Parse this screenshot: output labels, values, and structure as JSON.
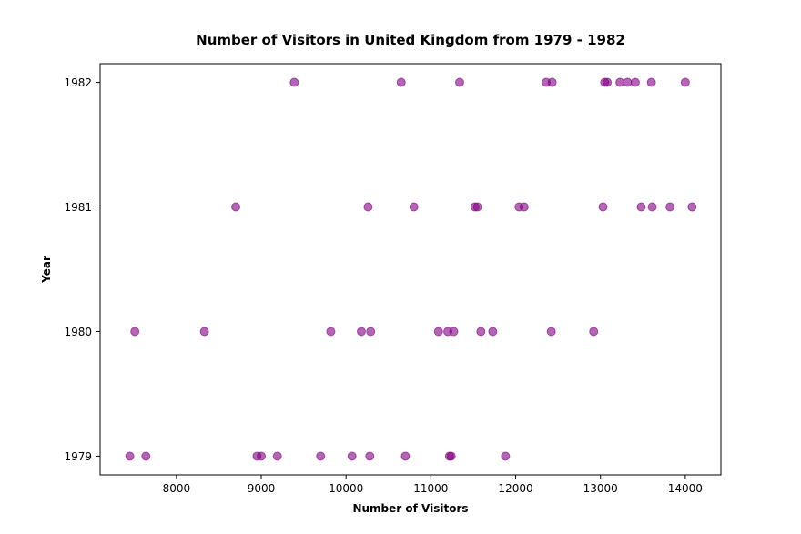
{
  "chart_data": {
    "type": "scatter",
    "title": "Number of Visitors in United Kingdom from 1979 - 1982",
    "xlabel": "Number of Visitors",
    "ylabel": "Year",
    "xlim": [
      7100,
      14420
    ],
    "ylim": [
      1978.85,
      1982.15
    ],
    "x_ticks": [
      8000,
      9000,
      10000,
      11000,
      12000,
      13000,
      14000
    ],
    "y_ticks": [
      1979,
      1980,
      1981,
      1982
    ],
    "grid": false,
    "marker_color": "#800080",
    "marker_opacity": 0.6,
    "points": [
      {
        "x": 7450,
        "y": 1979
      },
      {
        "x": 7640,
        "y": 1979
      },
      {
        "x": 8950,
        "y": 1979
      },
      {
        "x": 9000,
        "y": 1979
      },
      {
        "x": 9190,
        "y": 1979
      },
      {
        "x": 9700,
        "y": 1979
      },
      {
        "x": 10070,
        "y": 1979
      },
      {
        "x": 10280,
        "y": 1979
      },
      {
        "x": 10700,
        "y": 1979
      },
      {
        "x": 11220,
        "y": 1979
      },
      {
        "x": 11240,
        "y": 1979
      },
      {
        "x": 11880,
        "y": 1979
      },
      {
        "x": 7510,
        "y": 1980
      },
      {
        "x": 8330,
        "y": 1980
      },
      {
        "x": 9820,
        "y": 1980
      },
      {
        "x": 10180,
        "y": 1980
      },
      {
        "x": 10290,
        "y": 1980
      },
      {
        "x": 11090,
        "y": 1980
      },
      {
        "x": 11200,
        "y": 1980
      },
      {
        "x": 11270,
        "y": 1980
      },
      {
        "x": 11590,
        "y": 1980
      },
      {
        "x": 11730,
        "y": 1980
      },
      {
        "x": 12420,
        "y": 1980
      },
      {
        "x": 12920,
        "y": 1980
      },
      {
        "x": 8700,
        "y": 1981
      },
      {
        "x": 10260,
        "y": 1981
      },
      {
        "x": 10800,
        "y": 1981
      },
      {
        "x": 11520,
        "y": 1981
      },
      {
        "x": 11550,
        "y": 1981
      },
      {
        "x": 12040,
        "y": 1981
      },
      {
        "x": 12100,
        "y": 1981
      },
      {
        "x": 13030,
        "y": 1981
      },
      {
        "x": 13480,
        "y": 1981
      },
      {
        "x": 13610,
        "y": 1981
      },
      {
        "x": 13820,
        "y": 1981
      },
      {
        "x": 14080,
        "y": 1981
      },
      {
        "x": 9390,
        "y": 1982
      },
      {
        "x": 10650,
        "y": 1982
      },
      {
        "x": 11340,
        "y": 1982
      },
      {
        "x": 12360,
        "y": 1982
      },
      {
        "x": 12430,
        "y": 1982
      },
      {
        "x": 13050,
        "y": 1982
      },
      {
        "x": 13080,
        "y": 1982
      },
      {
        "x": 13230,
        "y": 1982
      },
      {
        "x": 13320,
        "y": 1982
      },
      {
        "x": 13410,
        "y": 1982
      },
      {
        "x": 13600,
        "y": 1982
      },
      {
        "x": 14000,
        "y": 1982
      }
    ]
  }
}
